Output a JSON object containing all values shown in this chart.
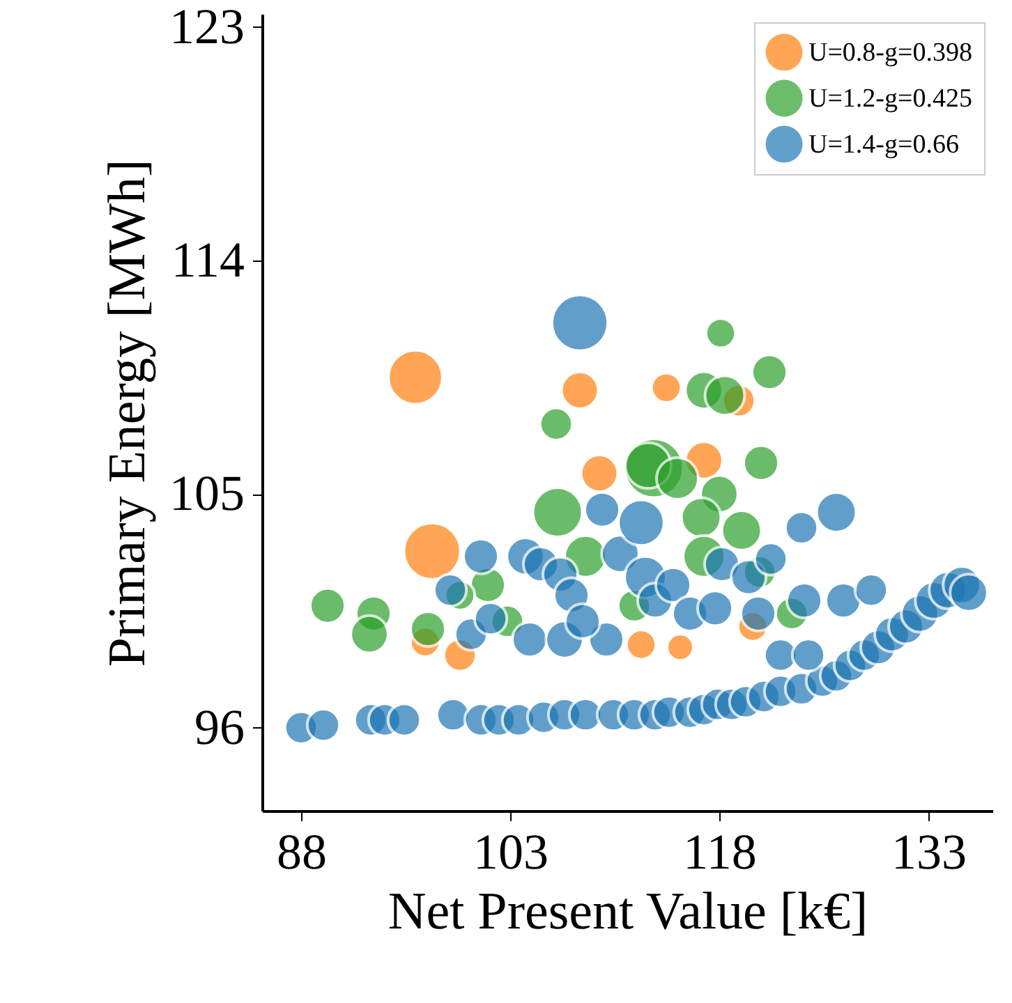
{
  "chart_data": {
    "type": "bubble",
    "xlabel": "Net Present Value [k€]",
    "ylabel": "Primary Energy [MWh]",
    "xlim": [
      85.2,
      137.6
    ],
    "ylim": [
      92.8,
      123.5
    ],
    "xticks": [
      88,
      103,
      118,
      133
    ],
    "yticks": [
      96,
      105,
      114,
      123
    ],
    "grid": false,
    "legend": "top right",
    "marker": "circle",
    "series": [
      {
        "name": "U=0.8-g=0.398",
        "color": "#ff7f0e",
        "x": [
          96.2,
          97.4,
          108,
          109.4,
          114.2,
          119.4,
          120.4,
          96.9,
          99.4,
          112.4,
          115.2,
          116.9
        ],
        "values": [
          109.5,
          102.8,
          109,
          105.8,
          109.1,
          108.6,
          99.9,
          99.3,
          98.8,
          99.2,
          99.1,
          106.3
        ],
        "sizes": [
          0.84,
          0.92,
          0.39,
          0.39,
          0.25,
          0.3,
          0.25,
          0.25,
          0.3,
          0.25,
          0.2,
          0.4
        ]
      },
      {
        "name": "U=1.2-g=0.425",
        "color": "#2ca02c",
        "x": [
          106.3,
          118.1,
          121.6,
          116.9,
          118.4,
          113.3,
          112.9,
          106.4,
          115,
          118,
          121,
          116.7,
          116.9,
          119.6,
          89.9,
          93.2,
          92.9,
          97.1,
          101.4,
          99.4,
          102.8,
          111.9,
          120.9,
          123.2,
          108.4
        ],
        "values": [
          107.7,
          111.2,
          109.7,
          109,
          108.8,
          106,
          106.1,
          104.3,
          105.6,
          105,
          106.2,
          104.1,
          102.6,
          103.6,
          100.7,
          100.4,
          99.6,
          99.8,
          101.5,
          101.1,
          100.1,
          100.7,
          102,
          100.4,
          102.6
        ],
        "sizes": [
          0.3,
          0.25,
          0.35,
          0.4,
          0.45,
          1,
          0.6,
          0.7,
          0.5,
          0.4,
          0.35,
          0.45,
          0.5,
          0.45,
          0.35,
          0.35,
          0.4,
          0.35,
          0.35,
          0.25,
          0.3,
          0.3,
          0.3,
          0.3,
          0.5
        ]
      },
      {
        "name": "U=1.4-g=0.66",
        "color": "#1f77b4",
        "x": [
          88,
          89.6,
          93,
          94,
          95.4,
          98.9,
          100.9,
          102.2,
          103.6,
          105.4,
          106.9,
          108.4,
          110.4,
          111.9,
          113.4,
          114.4,
          115.9,
          116.9,
          117.9,
          118.9,
          119.9,
          121.2,
          122.4,
          123.9,
          125.4,
          126.4,
          127.4,
          128.4,
          129.4,
          130.4,
          131.4,
          132.4,
          133.4,
          134.4,
          135.4,
          135.9,
          98.7,
          100.9,
          104.1,
          105.2,
          106.6,
          107.4,
          104.4,
          106.9,
          109.9,
          110.9,
          112.7,
          113.4,
          109.6,
          108.2,
          114.7,
          115.9,
          117.7,
          118.2,
          120.1,
          120.8,
          121.7,
          123.9,
          126.4,
          126.9,
          124.1,
          122.4,
          124.4,
          128.9,
          112.4,
          108,
          100.2,
          101.6
        ],
        "values": [
          96,
          96.1,
          96.3,
          96.3,
          96.3,
          96.5,
          96.3,
          96.3,
          96.3,
          96.4,
          96.5,
          96.5,
          96.5,
          96.5,
          96.5,
          96.6,
          96.6,
          96.7,
          96.9,
          96.9,
          97,
          97.2,
          97.4,
          97.5,
          97.8,
          98,
          98.4,
          98.8,
          99.1,
          99.6,
          99.9,
          100.4,
          100.9,
          101.3,
          101.5,
          101.2,
          101.3,
          102.6,
          102.6,
          102.3,
          101.9,
          101.1,
          99.4,
          99.4,
          99.4,
          102.7,
          101.8,
          100.9,
          104.4,
          100.1,
          101.5,
          100.4,
          100.6,
          102.3,
          101.8,
          100.4,
          102.5,
          103.7,
          104.3,
          100.9,
          100.9,
          98.8,
          98.8,
          101.3,
          103.9,
          111.6,
          99.6,
          100.2
        ],
        "sizes": [
          0.3,
          0.3,
          0.3,
          0.3,
          0.3,
          0.3,
          0.3,
          0.3,
          0.3,
          0.3,
          0.3,
          0.3,
          0.3,
          0.3,
          0.3,
          0.3,
          0.3,
          0.3,
          0.3,
          0.3,
          0.3,
          0.3,
          0.3,
          0.3,
          0.3,
          0.3,
          0.3,
          0.3,
          0.35,
          0.35,
          0.35,
          0.4,
          0.4,
          0.4,
          0.4,
          0.4,
          0.3,
          0.35,
          0.4,
          0.35,
          0.35,
          0.35,
          0.35,
          0.4,
          0.35,
          0.4,
          0.5,
          0.35,
          0.35,
          0.35,
          0.35,
          0.35,
          0.35,
          0.35,
          0.35,
          0.35,
          0.3,
          0.3,
          0.45,
          0.35,
          0.35,
          0.3,
          0.3,
          0.3,
          0.6,
          0.9,
          0.3,
          0.3
        ]
      }
    ]
  }
}
